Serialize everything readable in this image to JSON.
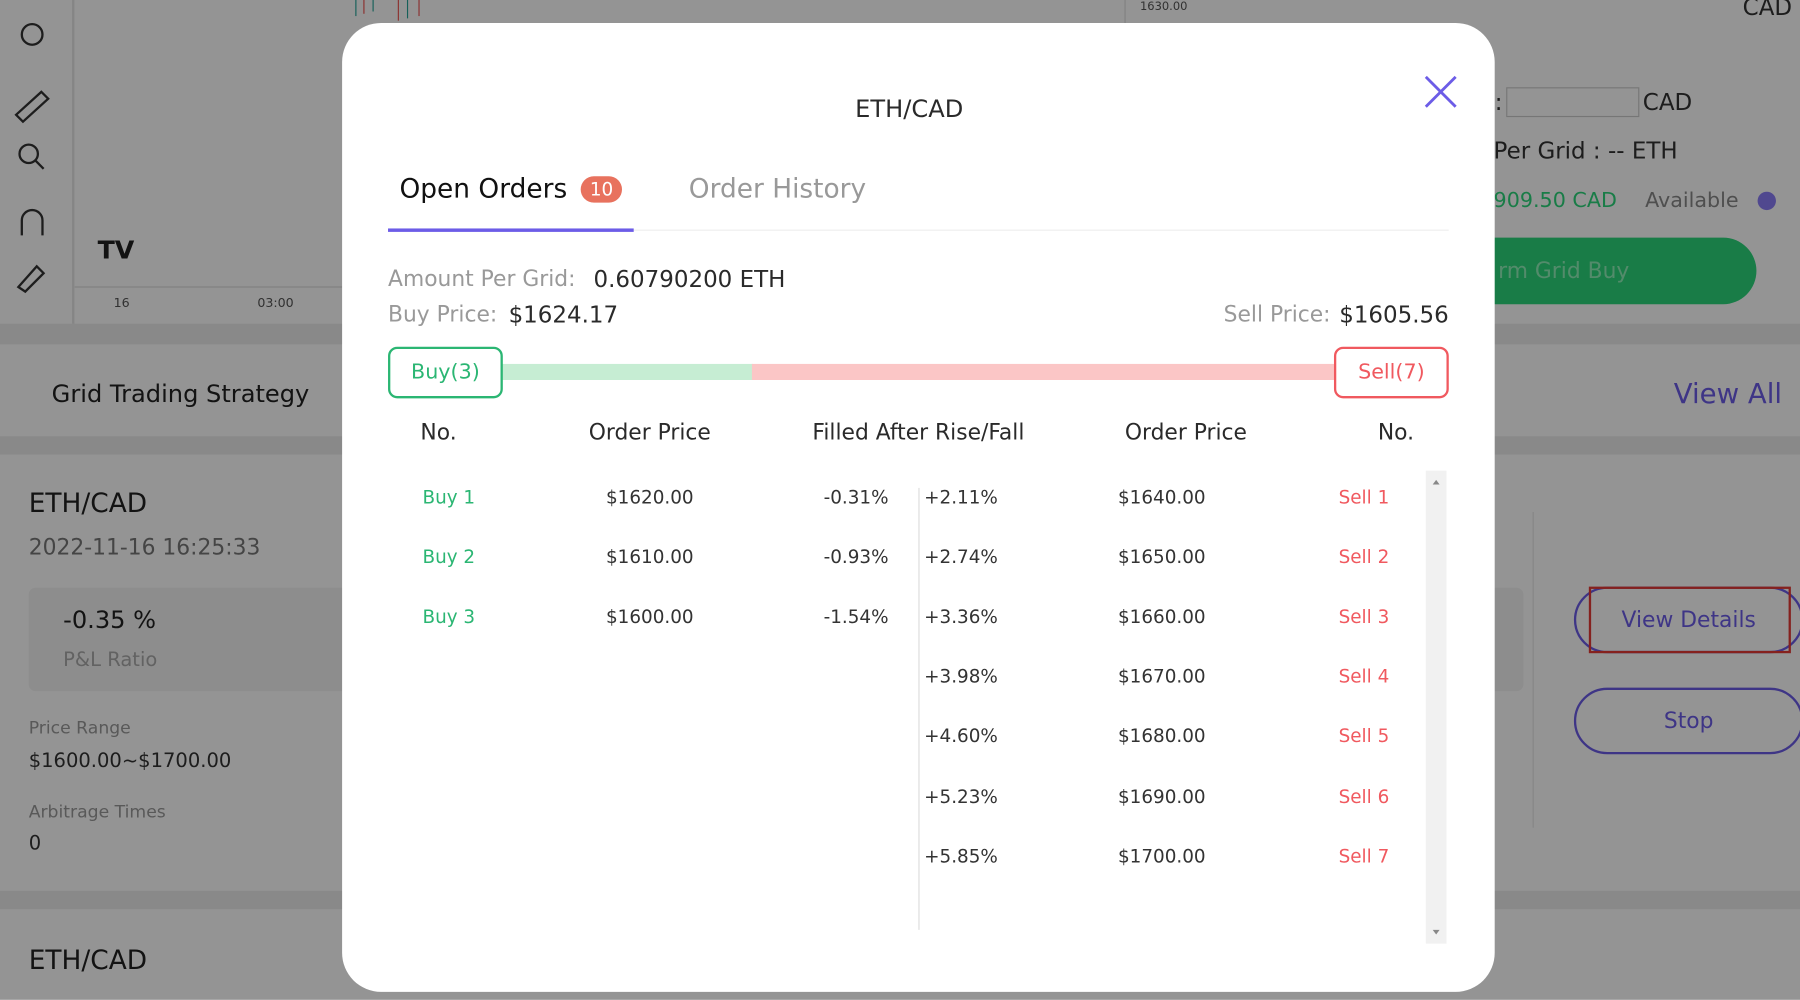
{
  "background": {
    "chart_axis": [
      "16",
      "03:00"
    ],
    "price_tag": "1630.00",
    "top_right": "CAD",
    "balance_prefix": ":",
    "balance_suffix": "CAD",
    "per_grid": "Per Grid : -- ETH",
    "available_amount": "909.50 CAD",
    "available_label": "Available",
    "confirm_button": "rm Grid Buy",
    "section_title": "Grid Trading Strategy",
    "view_all": "View All",
    "strategy": {
      "pair": "ETH/CAD",
      "time": "2022-11-16 16:25:33",
      "pnl_value": "-0.35 %",
      "pnl_label": "P&L Ratio",
      "price_range_label": "Price Range",
      "price_range": "$1600.00~$1700.00",
      "arbitrage_label": "Arbitrage Times",
      "arbitrage_value": "0"
    },
    "view_details": "View Details",
    "stop": "Stop",
    "next_pair": "ETH/CAD"
  },
  "modal": {
    "title": "ETH/CAD",
    "tabs": [
      {
        "label": "Open Orders",
        "badge": "10"
      },
      {
        "label": "Order History"
      }
    ],
    "amount_label": "Amount Per Grid:",
    "amount_value": "0.60790200 ETH",
    "buy_price_label": "Buy Price:",
    "buy_price_value": "$1624.17",
    "sell_price_label": "Sell Price:",
    "sell_price_value": "$1605.56",
    "buy_count": "Buy(3)",
    "sell_count": "Sell(7)",
    "columns": [
      "No.",
      "Order Price",
      "Filled After Rise/Fall",
      "Order Price",
      "No."
    ],
    "buy_orders": [
      {
        "no": "Buy 1",
        "price": "$1620.00",
        "change": "-0.31%"
      },
      {
        "no": "Buy 2",
        "price": "$1610.00",
        "change": "-0.93%"
      },
      {
        "no": "Buy 3",
        "price": "$1600.00",
        "change": "-1.54%"
      }
    ],
    "sell_orders": [
      {
        "no": "Sell 1",
        "price": "$1640.00",
        "change": "+2.11%"
      },
      {
        "no": "Sell 2",
        "price": "$1650.00",
        "change": "+2.74%"
      },
      {
        "no": "Sell 3",
        "price": "$1660.00",
        "change": "+3.36%"
      },
      {
        "no": "Sell 4",
        "price": "$1670.00",
        "change": "+3.98%"
      },
      {
        "no": "Sell 5",
        "price": "$1680.00",
        "change": "+4.60%"
      },
      {
        "no": "Sell 6",
        "price": "$1690.00",
        "change": "+5.23%"
      },
      {
        "no": "Sell 7",
        "price": "$1700.00",
        "change": "+5.85%"
      }
    ]
  }
}
